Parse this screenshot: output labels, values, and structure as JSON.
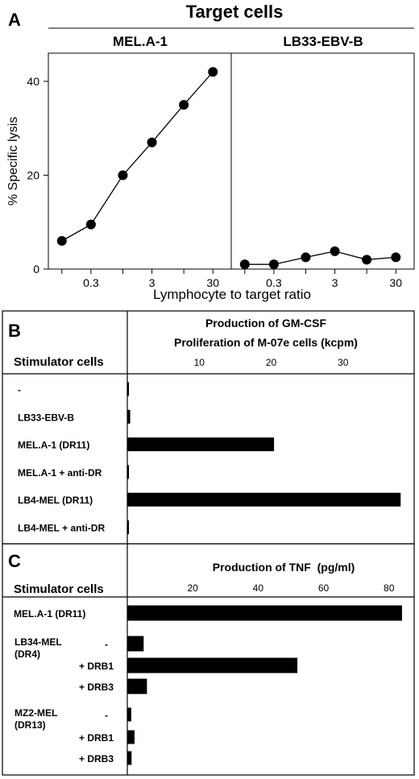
{
  "figure": {
    "panels": {
      "A": "A",
      "B": "B",
      "C": "C"
    }
  },
  "panel_a": {
    "heading": "Target cells",
    "plots": [
      "MEL.A-1",
      "LB33-EBV-B"
    ]
  },
  "panel_b": {
    "title_line1": "Production of GM-CSF",
    "title_line2": "Proliferation of M-07e cells (kcpm)",
    "row_header": "Stimulator cells"
  },
  "panel_c": {
    "title": "Production of TNF  (pg/ml)",
    "row_header": "Stimulator cells"
  },
  "chart_data": [
    {
      "type": "line",
      "title": "MEL.A-1",
      "xlabel": "Lymphocyte to target ratio",
      "ylabel": "% Specific lysis",
      "x_scale": "log",
      "x_ticks": [
        0.3,
        3,
        30
      ],
      "xlim": [
        0.06,
        60
      ],
      "y_ticks": [
        0,
        20,
        40
      ],
      "ylim": [
        0,
        46
      ],
      "marker_color": "#000000",
      "series": [
        {
          "x": [
            0.1,
            0.3,
            1,
            3,
            10,
            30
          ],
          "y": [
            6,
            9.5,
            20,
            27,
            35,
            42
          ]
        }
      ]
    },
    {
      "type": "line",
      "title": "LB33-EBV-B",
      "xlabel": "Lymphocyte to target ratio",
      "ylabel": "% Specific lysis",
      "x_scale": "log",
      "x_ticks": [
        0.3,
        3,
        30
      ],
      "xlim": [
        0.06,
        60
      ],
      "y_ticks": [
        0,
        20,
        40
      ],
      "ylim": [
        0,
        46
      ],
      "marker_color": "#000000",
      "series": [
        {
          "x": [
            0.1,
            0.3,
            1,
            3,
            10,
            30
          ],
          "y": [
            1,
            1,
            2.5,
            3.8,
            2,
            2.5
          ]
        }
      ]
    },
    {
      "type": "bar",
      "orientation": "horizontal",
      "title": "Production of GM-CSF",
      "xlabel": "Proliferation of M-07e cells (kcpm)",
      "xlim": [
        0,
        38.2
      ],
      "x_ticks": [
        10,
        20,
        30
      ],
      "categories": [
        "-",
        "LB33-EBV-B",
        "MEL.A-1 (DR11)",
        "MEL.A-1 + anti-DR",
        "LB4-MEL (DR11)",
        "LB4-MEL + anti-DR"
      ],
      "values": [
        0.2,
        0.4,
        20.4,
        0.1,
        38,
        0.2
      ],
      "bar_color": "#000000"
    },
    {
      "type": "bar",
      "orientation": "horizontal",
      "title": "Production of TNF  (pg/ml)",
      "xlabel": "",
      "xlim": [
        0,
        85
      ],
      "x_ticks": [
        20,
        40,
        60,
        80
      ],
      "categories": [
        {
          "group": "MEL.A-1 (DR11)",
          "label": ""
        },
        {
          "group": "LB34-MEL (DR4)",
          "label": "-"
        },
        {
          "group": "",
          "label": "+ DRB1"
        },
        {
          "group": "",
          "label": "+ DRB3"
        },
        {
          "group": "MZ2-MEL (DR13)",
          "label": "-"
        },
        {
          "group": "",
          "label": "+ DRB1"
        },
        {
          "group": "",
          "label": "+ DRB3"
        }
      ],
      "values": [
        84,
        5,
        52,
        6,
        1.2,
        2.2,
        1.3
      ],
      "bar_color": "#000000"
    }
  ]
}
